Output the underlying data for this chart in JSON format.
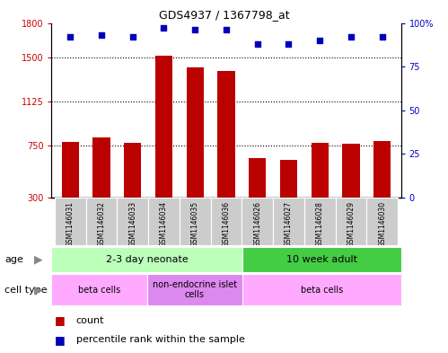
{
  "title": "GDS4937 / 1367798_at",
  "samples": [
    "GSM1146031",
    "GSM1146032",
    "GSM1146033",
    "GSM1146034",
    "GSM1146035",
    "GSM1146036",
    "GSM1146026",
    "GSM1146027",
    "GSM1146028",
    "GSM1146029",
    "GSM1146030"
  ],
  "counts": [
    780,
    820,
    770,
    1520,
    1420,
    1390,
    640,
    625,
    770,
    760,
    790
  ],
  "percentiles": [
    92,
    93,
    92,
    97,
    96,
    96,
    88,
    88,
    90,
    92,
    92
  ],
  "ylim_left": [
    300,
    1800
  ],
  "ylim_right": [
    0,
    100
  ],
  "yticks_left": [
    300,
    750,
    1125,
    1500,
    1800
  ],
  "yticks_right": [
    0,
    25,
    50,
    75,
    100
  ],
  "ytick_right_labels": [
    "0",
    "25",
    "50",
    "75",
    "100%"
  ],
  "bar_color": "#bb0000",
  "dot_color": "#0000bb",
  "age_groups": [
    {
      "label": "2-3 day neonate",
      "start": 0,
      "end": 6,
      "color": "#bbffbb"
    },
    {
      "label": "10 week adult",
      "start": 6,
      "end": 11,
      "color": "#44cc44"
    }
  ],
  "cell_groups": [
    {
      "label": "beta cells",
      "start": 0,
      "end": 3,
      "color": "#ffaaff"
    },
    {
      "label": "non-endocrine islet\ncells",
      "start": 3,
      "end": 6,
      "color": "#dd88ee"
    },
    {
      "label": "beta cells",
      "start": 6,
      "end": 11,
      "color": "#ffaaff"
    }
  ],
  "sample_bg": "#cccccc",
  "gridline_color": "#000000",
  "background_color": "#ffffff",
  "plot_bg": "#ffffff",
  "tick_label_color_left": "#cc0000",
  "tick_label_color_right": "#0000cc",
  "label_fontsize": 7,
  "tick_fontsize": 7,
  "title_fontsize": 9
}
